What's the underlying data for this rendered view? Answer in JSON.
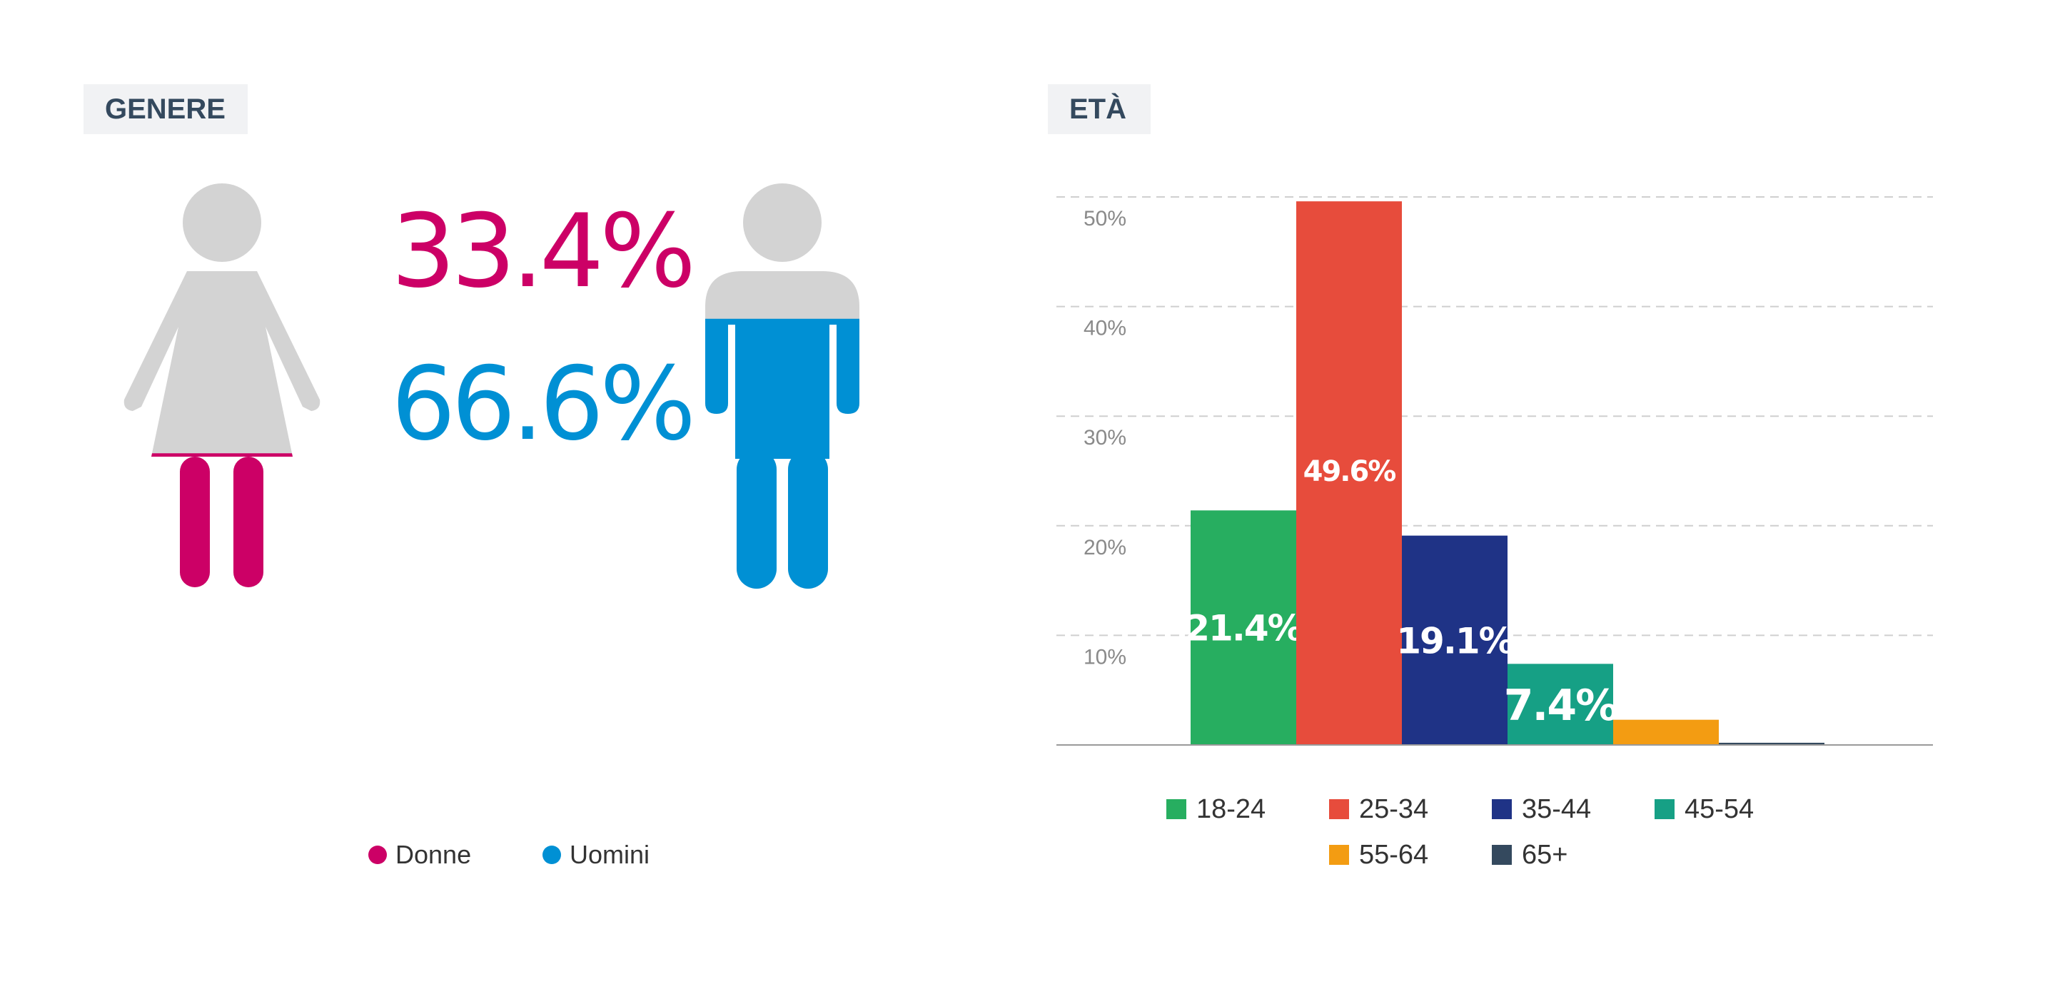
{
  "gender": {
    "title": "GENERE",
    "women": {
      "label": "Donne",
      "percent_text": "33.4%",
      "share": 0.334,
      "color": "#cc0066"
    },
    "men": {
      "label": "Uomini",
      "percent_text": "66.6%",
      "share": 0.666,
      "color": "#0090d4"
    },
    "figure_base_color": "#d3d3d3"
  },
  "age": {
    "title": "ETÀ"
  },
  "chart_data": {
    "type": "bar",
    "title": "ETÀ",
    "categories": [
      "18-24",
      "25-34",
      "35-44",
      "45-54",
      "55-64",
      "65+"
    ],
    "values": [
      21.4,
      49.6,
      19.1,
      7.4,
      2.3,
      0.2
    ],
    "data_labels": [
      "21.4%",
      "49.6%",
      "19.1%",
      "7.4%",
      "",
      ""
    ],
    "colors": [
      "#27ae60",
      "#e74c3c",
      "#1f3386",
      "#16a085",
      "#f39c12",
      "#34495e"
    ],
    "ylim": [
      0,
      50
    ],
    "yticks": [
      10,
      20,
      30,
      40,
      50
    ],
    "ytick_labels": [
      "10%",
      "20%",
      "30%",
      "40%",
      "50%"
    ],
    "grid": true,
    "legend": "bottom"
  }
}
